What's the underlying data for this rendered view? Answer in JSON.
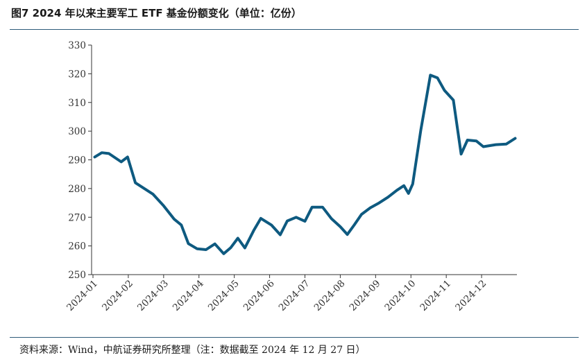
{
  "header": {
    "title": "图7  2024 年以来主要军工 ETF 基金份额变化（单位：亿份）"
  },
  "footer": {
    "source": "资料来源：Wind，中航证券研究所整理（注：数据截至 2024 年 12 月 27 日）"
  },
  "chart_data": {
    "type": "line",
    "title": "图7  2024 年以来主要军工 ETF 基金份额变化（单位：亿份）",
    "xlabel": "",
    "ylabel": "",
    "ylim": [
      250,
      330
    ],
    "yticks": [
      250,
      260,
      270,
      280,
      290,
      300,
      310,
      320,
      330
    ],
    "xlim": [
      0,
      12
    ],
    "xticks": [
      {
        "pos": 0,
        "label": "2024-01"
      },
      {
        "pos": 1,
        "label": "2024-02"
      },
      {
        "pos": 2,
        "label": "2024-03"
      },
      {
        "pos": 3,
        "label": "2024-04"
      },
      {
        "pos": 4,
        "label": "2024-05"
      },
      {
        "pos": 5,
        "label": "2024-06"
      },
      {
        "pos": 6,
        "label": "2024-07"
      },
      {
        "pos": 7,
        "label": "2024-08"
      },
      {
        "pos": 8,
        "label": "2024-09"
      },
      {
        "pos": 9,
        "label": "2024-10"
      },
      {
        "pos": 10,
        "label": "2024-11"
      },
      {
        "pos": 11,
        "label": "2024-12"
      }
    ],
    "grid": false,
    "color": "#0e5a80",
    "series": [
      {
        "name": "",
        "x": [
          0.05,
          0.25,
          0.45,
          0.8,
          0.98,
          1.2,
          1.7,
          2.0,
          2.3,
          2.5,
          2.7,
          2.95,
          3.2,
          3.45,
          3.7,
          3.9,
          4.1,
          4.3,
          4.55,
          4.75,
          5.05,
          5.3,
          5.5,
          5.75,
          6.0,
          6.2,
          6.5,
          6.75,
          7.0,
          7.2,
          7.4,
          7.6,
          7.85,
          8.1,
          8.35,
          8.6,
          8.8,
          8.93,
          9.05,
          9.28,
          9.55,
          9.75,
          9.95,
          10.2,
          10.42,
          10.6,
          10.85,
          11.05,
          11.4,
          11.7,
          11.95
        ],
        "y": [
          291,
          292.5,
          292.2,
          289.3,
          291,
          282,
          278,
          274,
          269.3,
          267.3,
          260.8,
          259,
          258.7,
          260.7,
          257.3,
          259.4,
          262.7,
          259.3,
          265.4,
          269.6,
          267.3,
          263.9,
          268.7,
          270,
          268.6,
          273.5,
          273.5,
          269.5,
          266.7,
          264,
          267.4,
          271,
          273.3,
          275,
          277,
          279.4,
          281,
          278.3,
          281.6,
          300.4,
          319.5,
          318.6,
          314.2,
          310.8,
          292,
          296.9,
          296.6,
          294.6,
          295.3,
          295.5,
          297.5
        ]
      }
    ]
  }
}
